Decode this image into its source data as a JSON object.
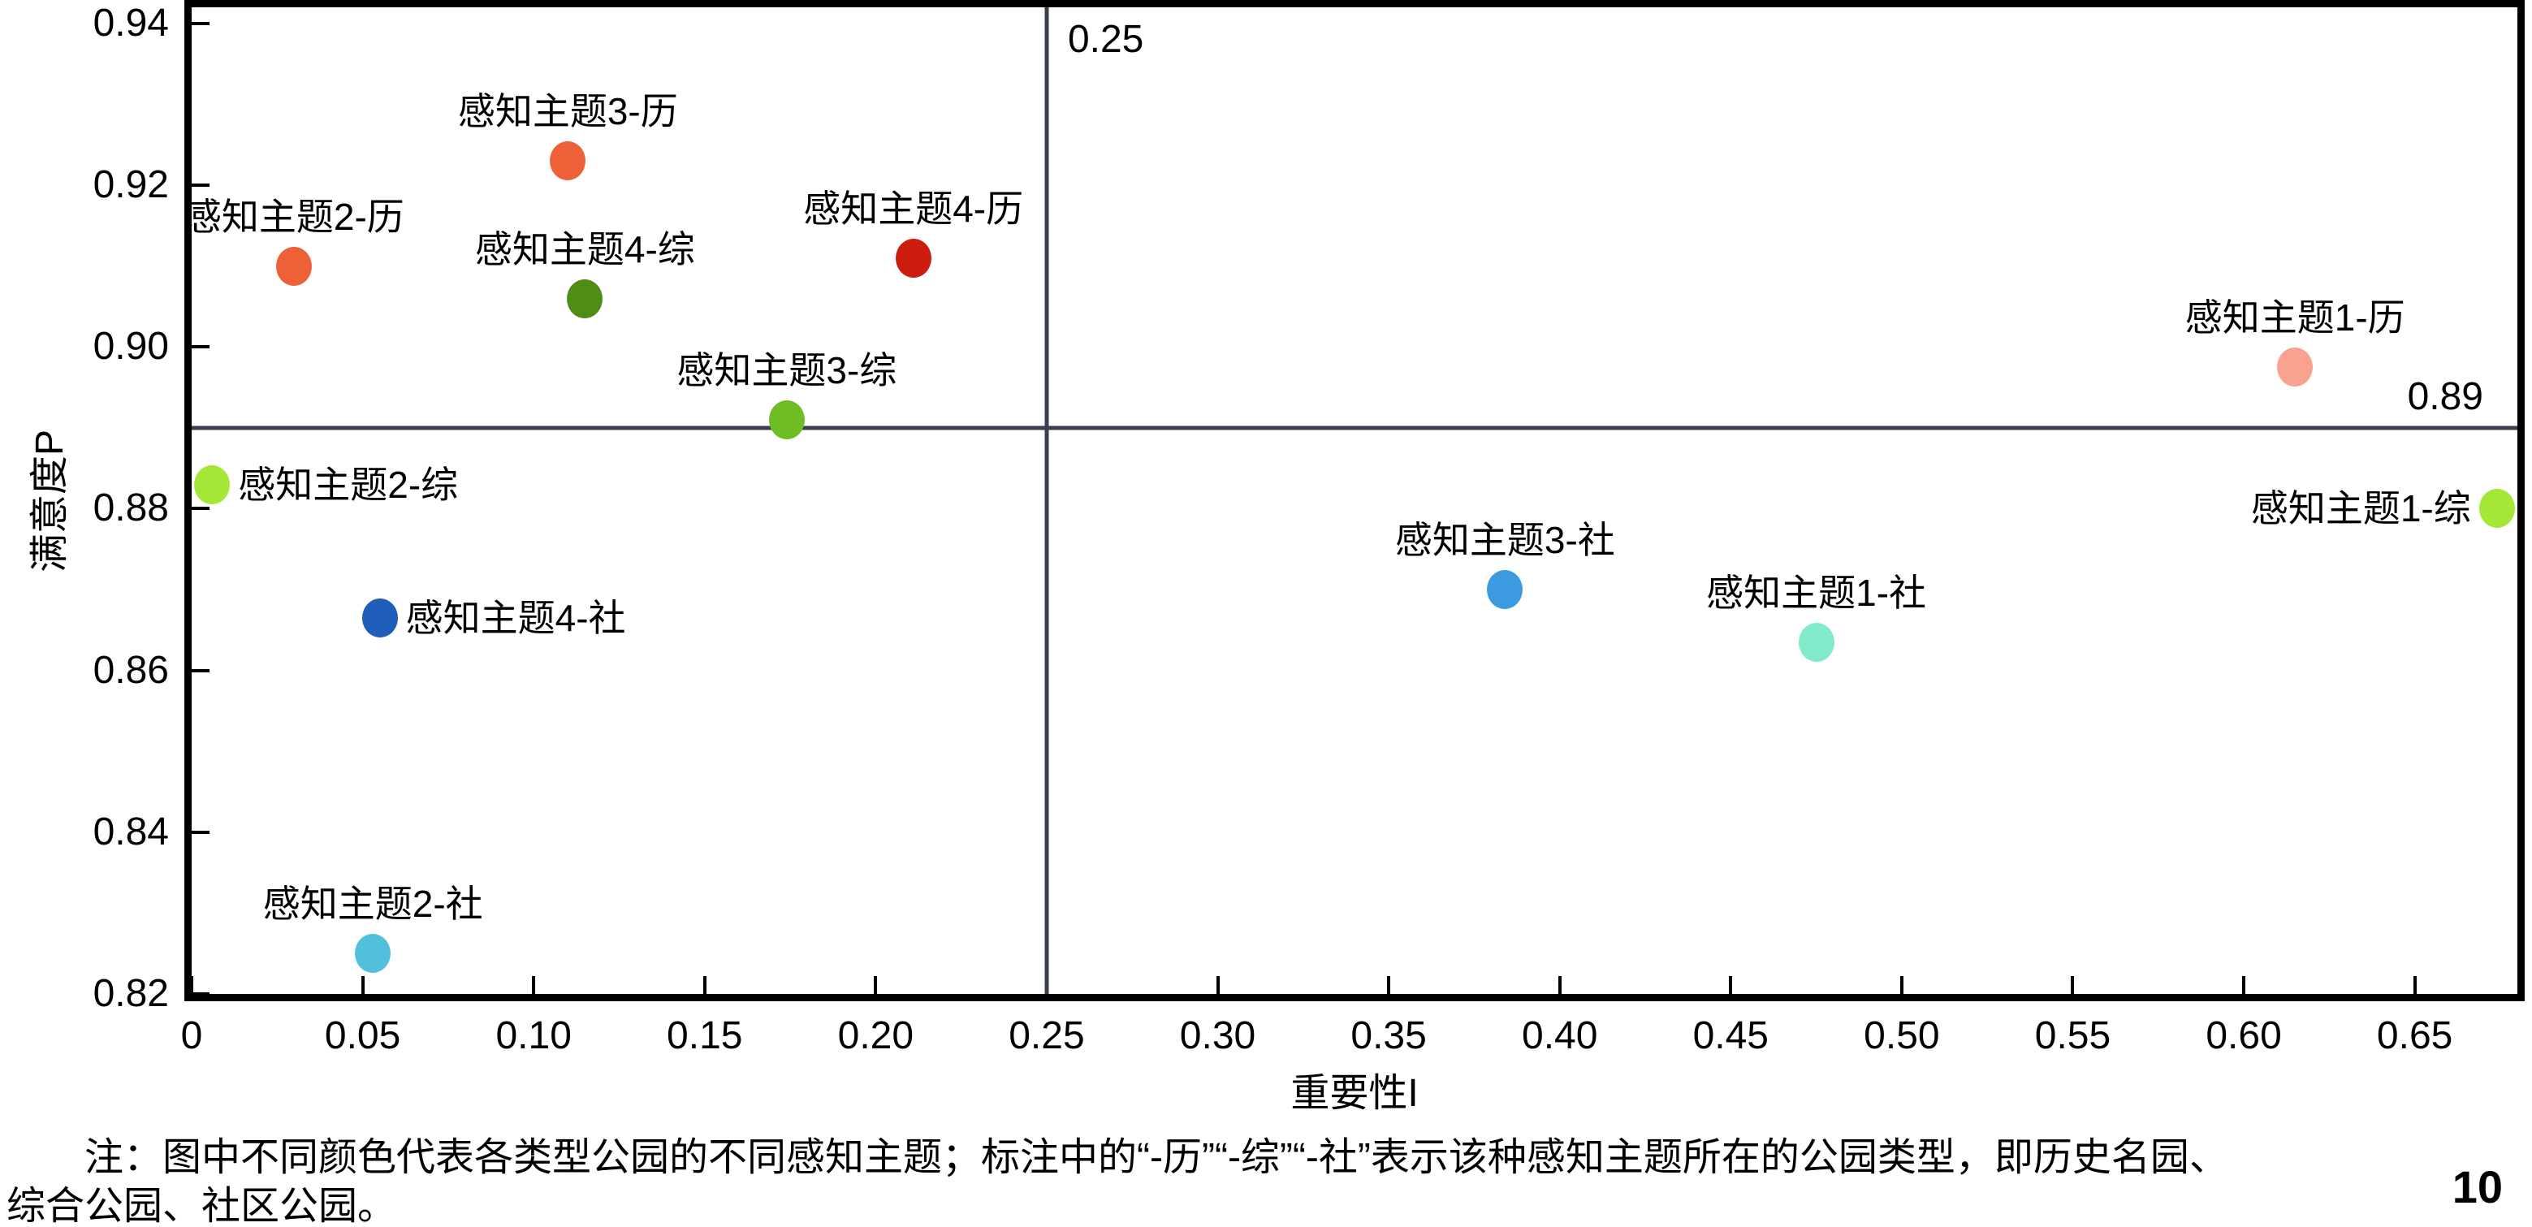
{
  "figure": {
    "note_line1": "注：图中不同颜色代表各类型公园的不同感知主题；标注中的“-历”“-综”“-社”表示该种感知主题所在的公园类型，即历史名园、",
    "note_line2": "综合公园、社区公园。",
    "page_number": "10"
  },
  "styles": {
    "axis_color": "#000000",
    "ref_line_color": "#3a3f4d",
    "text_color": "#000000",
    "background": "#ffffff"
  },
  "chart_data": {
    "type": "scatter",
    "title": "",
    "xlabel": "重要性I",
    "ylabel": "满意度P",
    "xlim": [
      0,
      0.68
    ],
    "ylim": [
      0.82,
      0.942
    ],
    "grid": false,
    "x_ticks": [
      0,
      0.05,
      0.1,
      0.15,
      0.2,
      0.25,
      0.3,
      0.35,
      0.4,
      0.45,
      0.5,
      0.55,
      0.6,
      0.65
    ],
    "x_tick_labels": [
      "0",
      "0.05",
      "0.10",
      "0.15",
      "0.20",
      "0.25",
      "0.30",
      "0.35",
      "0.40",
      "0.45",
      "0.50",
      "0.55",
      "0.60",
      "0.65"
    ],
    "y_ticks": [
      0.82,
      0.84,
      0.86,
      0.88,
      0.9,
      0.92,
      0.94
    ],
    "y_tick_labels": [
      "0.82",
      "0.84",
      "0.86",
      "0.88",
      "0.90",
      "0.92",
      "0.94"
    ],
    "reference_lines": {
      "vertical": {
        "value": 0.25,
        "label": "0.25"
      },
      "horizontal": {
        "value": 0.89,
        "label": "0.89"
      }
    },
    "points": [
      {
        "label": "感知主题2-历",
        "x": 0.03,
        "y": 0.91,
        "color": "#EE6038",
        "label_pos": "above"
      },
      {
        "label": "感知主题3-历",
        "x": 0.11,
        "y": 0.923,
        "color": "#EE6038",
        "label_pos": "above"
      },
      {
        "label": "感知主题4-综",
        "x": 0.115,
        "y": 0.906,
        "color": "#4E8E16",
        "label_pos": "above"
      },
      {
        "label": "感知主题4-历",
        "x": 0.211,
        "y": 0.911,
        "color": "#CC1C10",
        "label_pos": "above"
      },
      {
        "label": "感知主题3-综",
        "x": 0.174,
        "y": 0.891,
        "color": "#6FBD24",
        "label_pos": "above"
      },
      {
        "label": "感知主题2-综",
        "x": 0.006,
        "y": 0.883,
        "color": "#A5E737",
        "label_pos": "right"
      },
      {
        "label": "感知主题4-社",
        "x": 0.055,
        "y": 0.8665,
        "color": "#1F5FBA",
        "label_pos": "right"
      },
      {
        "label": "感知主题2-社",
        "x": 0.053,
        "y": 0.825,
        "color": "#52C0DC",
        "label_pos": "above"
      },
      {
        "label": "感知主题3-社",
        "x": 0.384,
        "y": 0.87,
        "color": "#3B9AE0",
        "label_pos": "above"
      },
      {
        "label": "感知主题1-社",
        "x": 0.475,
        "y": 0.8635,
        "color": "#80EACA",
        "label_pos": "above"
      },
      {
        "label": "感知主题1-历",
        "x": 0.615,
        "y": 0.8975,
        "color": "#F9A28F",
        "label_pos": "above"
      },
      {
        "label": "感知主题1-综",
        "x": 0.674,
        "y": 0.88,
        "color": "#A5E737",
        "label_pos": "left"
      }
    ]
  }
}
